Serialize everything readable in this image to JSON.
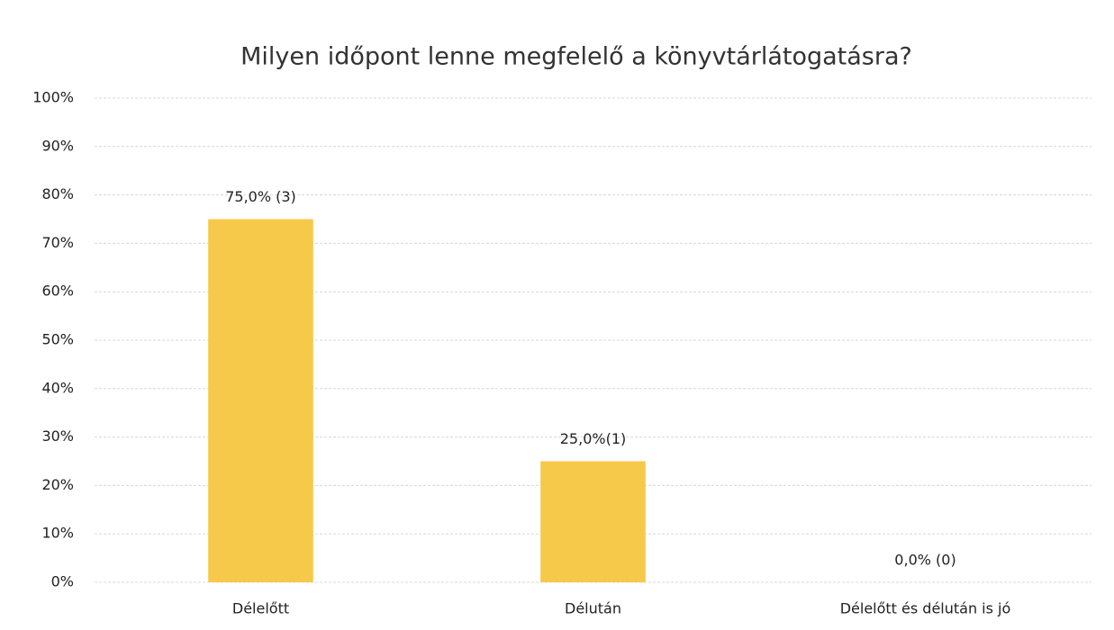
{
  "chart_data": {
    "type": "bar",
    "title": "Milyen időpont lenne megfelelő a könyvtárlátogatásra?",
    "categories": [
      "Délelőtt",
      "Délután",
      "Délelőtt és délután is jó"
    ],
    "values": [
      75,
      25,
      0
    ],
    "value_labels": [
      "75,0% (3)",
      "25,0%(1)",
      "0,0% (0)"
    ],
    "color": "#f6c94a",
    "ylim": [
      0,
      100
    ],
    "yticks": [
      {
        "value": 0,
        "label": "0%"
      },
      {
        "value": 10,
        "label": "10%"
      },
      {
        "value": 20,
        "label": "20%"
      },
      {
        "value": 30,
        "label": "30%"
      },
      {
        "value": 40,
        "label": "40%"
      },
      {
        "value": 50,
        "label": "50%"
      },
      {
        "value": 60,
        "label": "60%"
      },
      {
        "value": 70,
        "label": "70%"
      },
      {
        "value": 80,
        "label": "80%"
      },
      {
        "value": 90,
        "label": "90%"
      },
      {
        "value": 100,
        "label": "100%"
      }
    ],
    "grid": true
  }
}
